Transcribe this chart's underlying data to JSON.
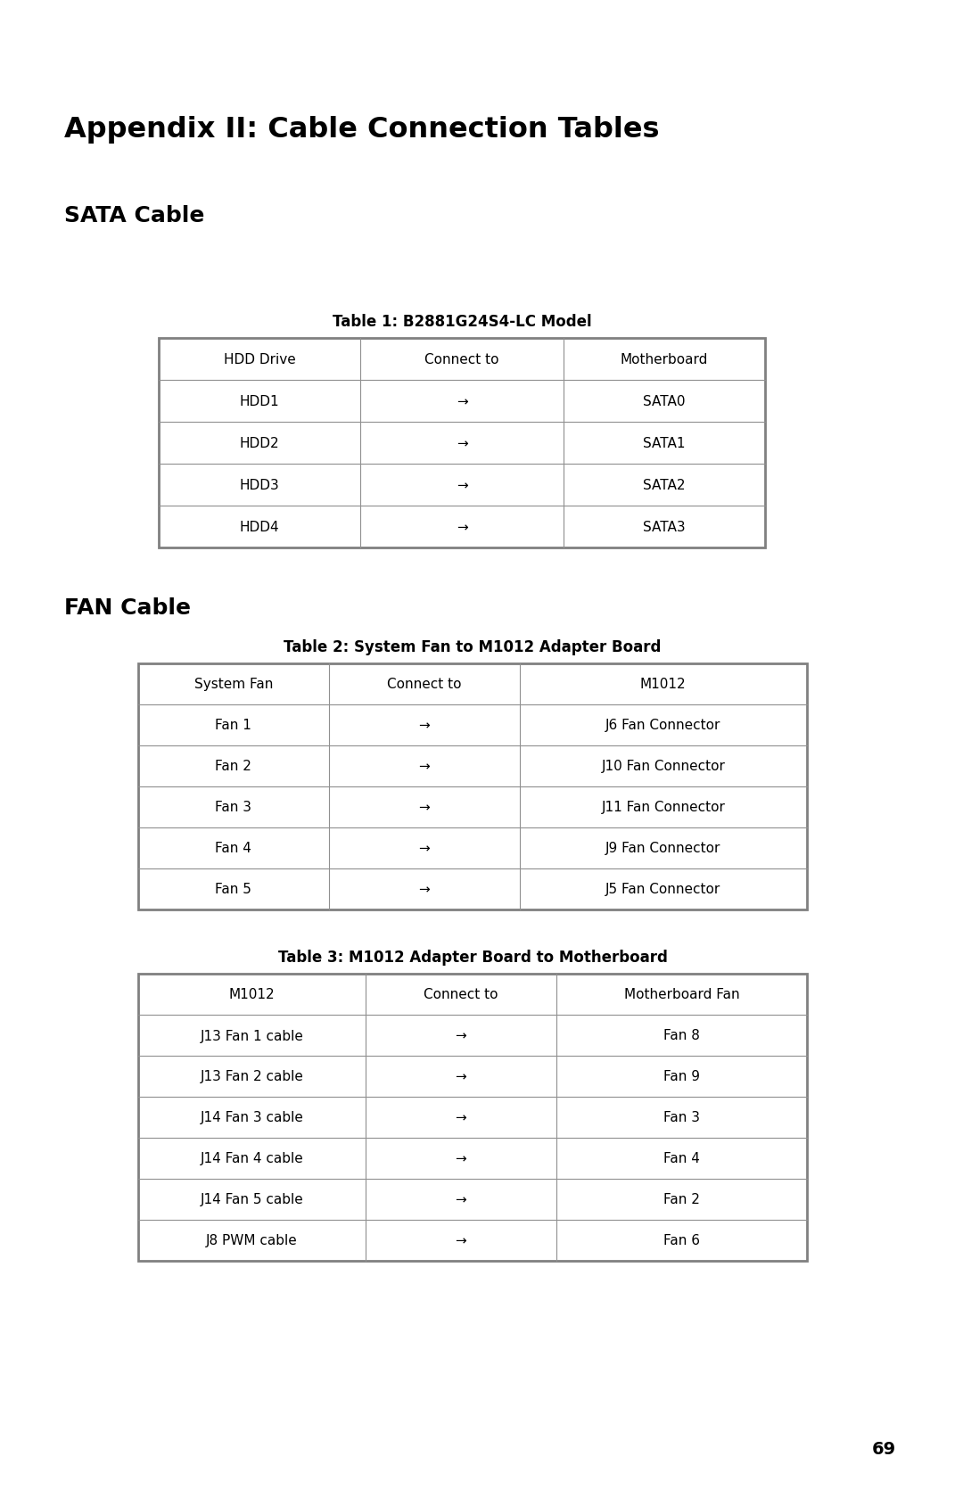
{
  "page_title": "Appendix II: Cable Connection Tables",
  "section1_title": "SATA Cable",
  "section2_title": "FAN Cable",
  "table1_caption": "Table 1: B2881G24S4-LC Model",
  "table1_headers": [
    "HDD Drive",
    "Connect to",
    "Motherboard"
  ],
  "table1_rows": [
    [
      "HDD1",
      "→",
      "SATA0"
    ],
    [
      "HDD2",
      "→",
      "SATA1"
    ],
    [
      "HDD3",
      "→",
      "SATA2"
    ],
    [
      "HDD4",
      "→",
      "SATA3"
    ]
  ],
  "table2_caption": "Table 2: System Fan to M1012 Adapter Board",
  "table2_headers": [
    "System Fan",
    "Connect to",
    "M1012"
  ],
  "table2_rows": [
    [
      "Fan 1",
      "→",
      "J6 Fan Connector"
    ],
    [
      "Fan 2",
      "→",
      "J10 Fan Connector"
    ],
    [
      "Fan 3",
      "→",
      "J11 Fan Connector"
    ],
    [
      "Fan 4",
      "→",
      "J9 Fan Connector"
    ],
    [
      "Fan 5",
      "→",
      "J5 Fan Connector"
    ]
  ],
  "table3_caption": "Table 3: M1012 Adapter Board to Motherboard",
  "table3_headers": [
    "M1012",
    "Connect to",
    "Motherboard Fan"
  ],
  "table3_rows": [
    [
      "J13 Fan 1 cable",
      "→",
      "Fan 8"
    ],
    [
      "J13 Fan 2 cable",
      "→",
      "Fan 9"
    ],
    [
      "J14 Fan 3 cable",
      "→",
      "Fan 3"
    ],
    [
      "J14 Fan 4 cable",
      "→",
      "Fan 4"
    ],
    [
      "J14 Fan 5 cable",
      "→",
      "Fan 2"
    ],
    [
      "J8 PWM cable",
      "→",
      "Fan 6"
    ]
  ],
  "page_number": "69",
  "bg_color": "#ffffff",
  "text_color": "#000000",
  "table_border_color": "#808080",
  "table_inner_color": "#909090"
}
